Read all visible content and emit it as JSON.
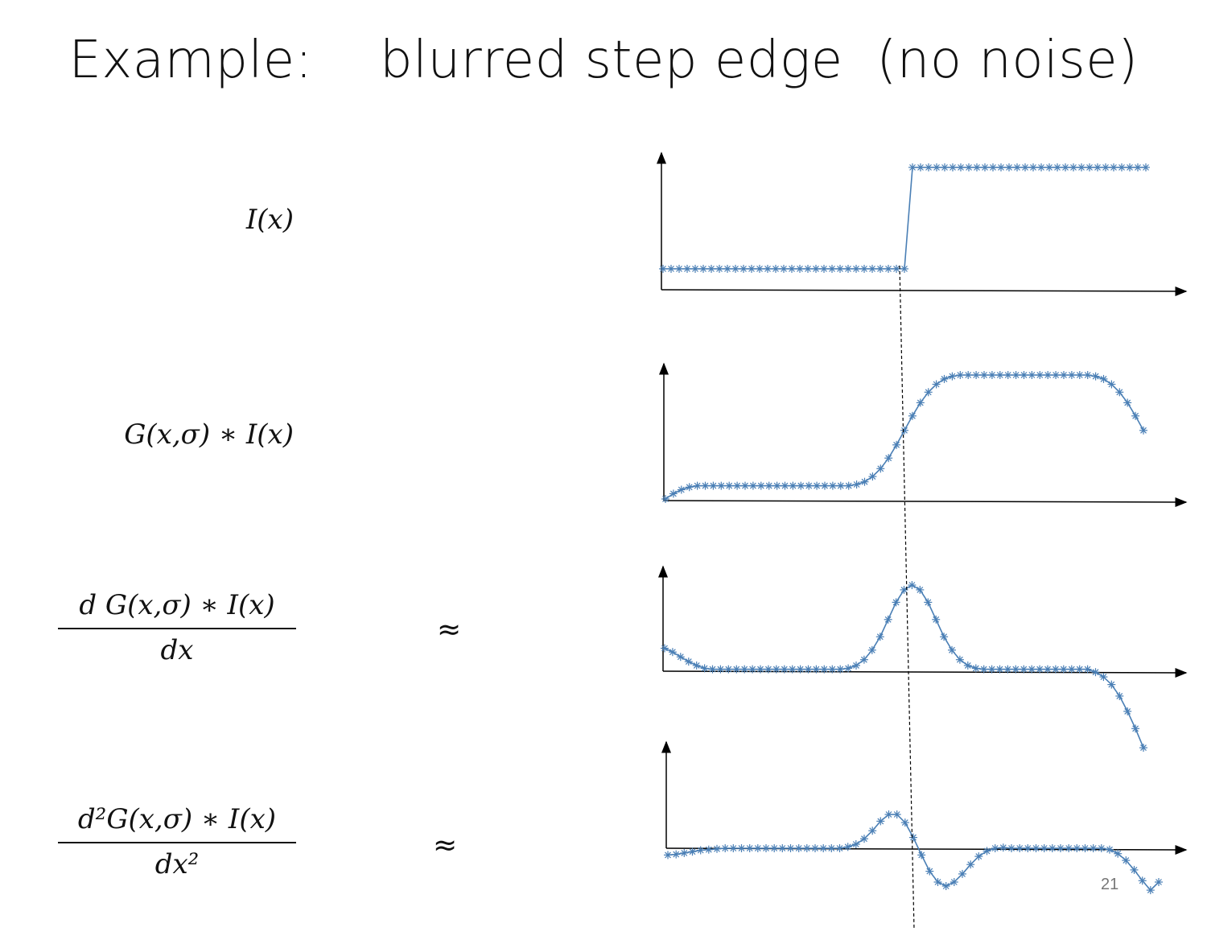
{
  "title": "Example:    blurred step edge  (no noise)",
  "labels": {
    "row1": "I(x)",
    "row2": "G(x,σ) ∗ I(x)",
    "row3_num": "d G(x,σ) ∗  I(x)",
    "row3_den": "dx",
    "row3_approx": "≈",
    "row4_num": "d²G(x,σ) ∗ I(x)",
    "row4_den": "dx²",
    "row4_approx": "≈"
  },
  "page_number": "21",
  "colors": {
    "series": "#4a7fb5",
    "axis": "#000000",
    "guide": "#000000"
  },
  "chart_data": [
    {
      "type": "line",
      "name": "step",
      "marker": "asterisk",
      "x": [
        0,
        1,
        2,
        3,
        4,
        5,
        6,
        7,
        8,
        9,
        10,
        11,
        12,
        13,
        14,
        15,
        16,
        17,
        18,
        19,
        20,
        21,
        22,
        23,
        24,
        25,
        26,
        27,
        28,
        29,
        30,
        31,
        32,
        33,
        34,
        35,
        36,
        37,
        38,
        39,
        40,
        41,
        42,
        43,
        44,
        45,
        46,
        47,
        48,
        49,
        50,
        51,
        52,
        53,
        54,
        55,
        56,
        57,
        58,
        59,
        60
      ],
      "y": [
        0,
        0,
        0,
        0,
        0,
        0,
        0,
        0,
        0,
        0,
        0,
        0,
        0,
        0,
        0,
        0,
        0,
        0,
        0,
        0,
        0,
        0,
        0,
        0,
        0,
        0,
        0,
        0,
        0,
        0,
        0,
        1,
        1,
        1,
        1,
        1,
        1,
        1,
        1,
        1,
        1,
        1,
        1,
        1,
        1,
        1,
        1,
        1,
        1,
        1,
        1,
        1,
        1,
        1,
        1,
        1,
        1,
        1,
        1,
        1,
        1
      ],
      "xlim": [
        0,
        65
      ],
      "ylim": [
        -0.2,
        1.0
      ],
      "grid": false
    },
    {
      "type": "line",
      "name": "smoothed",
      "marker": "asterisk",
      "x": [
        0,
        1,
        2,
        3,
        4,
        5,
        6,
        7,
        8,
        9,
        10,
        11,
        12,
        13,
        14,
        15,
        16,
        17,
        18,
        19,
        20,
        21,
        22,
        23,
        24,
        25,
        26,
        27,
        28,
        29,
        30,
        31,
        32,
        33,
        34,
        35,
        36,
        37,
        38,
        39,
        40,
        41,
        42,
        43,
        44,
        45,
        46,
        47,
        48,
        49,
        50,
        51,
        52,
        53,
        54,
        55,
        56,
        57,
        58,
        59,
        60
      ],
      "y": [
        0.0,
        0.04,
        0.07,
        0.09,
        0.1,
        0.1,
        0.1,
        0.1,
        0.1,
        0.1,
        0.1,
        0.1,
        0.1,
        0.1,
        0.1,
        0.1,
        0.1,
        0.1,
        0.1,
        0.1,
        0.1,
        0.1,
        0.1,
        0.1,
        0.11,
        0.13,
        0.17,
        0.23,
        0.31,
        0.41,
        0.52,
        0.63,
        0.73,
        0.81,
        0.87,
        0.91,
        0.93,
        0.94,
        0.94,
        0.94,
        0.94,
        0.94,
        0.94,
        0.94,
        0.94,
        0.94,
        0.94,
        0.94,
        0.94,
        0.94,
        0.94,
        0.94,
        0.94,
        0.94,
        0.93,
        0.91,
        0.87,
        0.81,
        0.73,
        0.63,
        0.52
      ],
      "xlim": [
        0,
        65
      ],
      "ylim": [
        -0.05,
        1.0
      ],
      "grid": false
    },
    {
      "type": "line",
      "name": "first derivative",
      "marker": "asterisk",
      "x": [
        0,
        1,
        2,
        3,
        4,
        5,
        6,
        7,
        8,
        9,
        10,
        11,
        12,
        13,
        14,
        15,
        16,
        17,
        18,
        19,
        20,
        21,
        22,
        23,
        24,
        25,
        26,
        27,
        28,
        29,
        30,
        31,
        32,
        33,
        34,
        35,
        36,
        37,
        38,
        39,
        40,
        41,
        42,
        43,
        44,
        45,
        46,
        47,
        48,
        49,
        50,
        51,
        52,
        53,
        54,
        55,
        56,
        57,
        58,
        59,
        60
      ],
      "y": [
        0.24,
        0.2,
        0.15,
        0.1,
        0.06,
        0.03,
        0.02,
        0.02,
        0.02,
        0.02,
        0.02,
        0.02,
        0.02,
        0.02,
        0.02,
        0.02,
        0.02,
        0.02,
        0.02,
        0.02,
        0.02,
        0.02,
        0.02,
        0.03,
        0.06,
        0.12,
        0.22,
        0.36,
        0.54,
        0.72,
        0.85,
        0.9,
        0.85,
        0.72,
        0.54,
        0.36,
        0.22,
        0.12,
        0.06,
        0.03,
        0.02,
        0.02,
        0.02,
        0.02,
        0.02,
        0.02,
        0.02,
        0.02,
        0.02,
        0.02,
        0.02,
        0.02,
        0.02,
        0.02,
        -0.01,
        -0.06,
        -0.14,
        -0.26,
        -0.42,
        -0.6,
        -0.8
      ],
      "xlim": [
        0,
        65
      ],
      "ylim": [
        -1.0,
        1.05
      ],
      "grid": false
    },
    {
      "type": "line",
      "name": "second derivative",
      "marker": "asterisk",
      "x": [
        0,
        1,
        2,
        3,
        4,
        5,
        6,
        7,
        8,
        9,
        10,
        11,
        12,
        13,
        14,
        15,
        16,
        17,
        18,
        19,
        20,
        21,
        22,
        23,
        24,
        25,
        26,
        27,
        28,
        29,
        30,
        31,
        32,
        33,
        34,
        35,
        36,
        37,
        38,
        39,
        40,
        41,
        42,
        43,
        44,
        45,
        46,
        47,
        48,
        49,
        50,
        51,
        52,
        53,
        54,
        55,
        56,
        57,
        58,
        59,
        60
      ],
      "y": [
        -0.1,
        -0.09,
        -0.07,
        -0.05,
        -0.03,
        -0.02,
        -0.01,
        0.0,
        0.0,
        0.0,
        0.0,
        0.0,
        0.0,
        0.0,
        0.0,
        0.0,
        0.0,
        0.0,
        0.0,
        0.0,
        0.0,
        0.0,
        0.02,
        0.06,
        0.14,
        0.26,
        0.4,
        0.5,
        0.5,
        0.38,
        0.16,
        -0.1,
        -0.34,
        -0.5,
        -0.56,
        -0.5,
        -0.38,
        -0.24,
        -0.12,
        -0.04,
        0.0,
        0.01,
        0.0,
        0.0,
        0.0,
        0.0,
        0.0,
        0.0,
        0.0,
        0.0,
        0.0,
        0.0,
        0.0,
        0.0,
        -0.02,
        -0.08,
        -0.18,
        -0.32,
        -0.48,
        -0.62,
        -0.5
      ],
      "xlim": [
        0,
        65
      ],
      "ylim": [
        -1.0,
        1.0
      ],
      "grid": false
    }
  ]
}
